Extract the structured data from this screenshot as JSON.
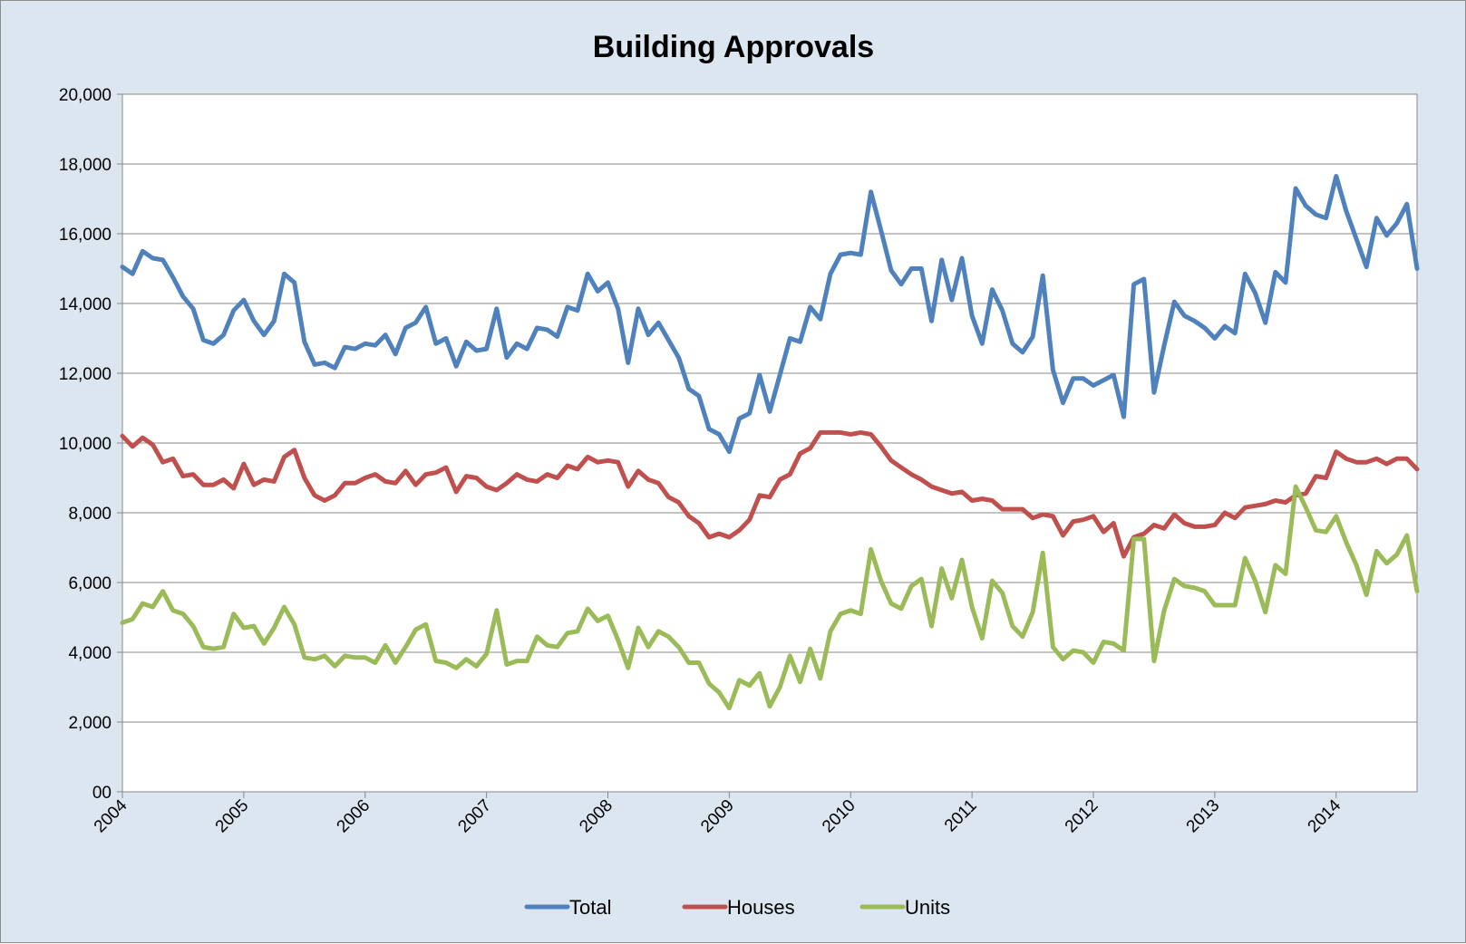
{
  "chart_data": {
    "type": "line",
    "title": "Building Approvals",
    "xlabel": "",
    "ylabel": "",
    "ylim": [
      0,
      20000
    ],
    "y_ticks": [
      0,
      2000,
      4000,
      6000,
      8000,
      10000,
      12000,
      14000,
      16000,
      18000,
      20000
    ],
    "y_tick_labels": [
      "00",
      "2,000",
      "4,000",
      "6,000",
      "8,000",
      "10,000",
      "12,000",
      "14,000",
      "16,000",
      "18,000",
      "20,000"
    ],
    "x_ticks": [
      "2004",
      "2005",
      "2006",
      "2007",
      "2008",
      "2009",
      "2010",
      "2011",
      "2012",
      "2013",
      "2014"
    ],
    "x_start": "2004-01",
    "frequency": "monthly",
    "grid": "horizontal",
    "legend_position": "bottom",
    "series": [
      {
        "name": "Total",
        "color": "#4f81bd",
        "values": [
          15050,
          14850,
          15500,
          15300,
          15250,
          14750,
          14200,
          13850,
          12950,
          12850,
          13100,
          13800,
          14100,
          13500,
          13100,
          13500,
          14850,
          14600,
          12900,
          12250,
          12300,
          12150,
          12750,
          12700,
          12850,
          12800,
          13100,
          12550,
          13300,
          13450,
          13900,
          12850,
          13000,
          12200,
          12900,
          12650,
          12700,
          13850,
          12450,
          12850,
          12700,
          13300,
          13250,
          13050,
          13900,
          13800,
          14850,
          14350,
          14600,
          13850,
          12300,
          13850,
          13100,
          13450,
          12950,
          12450,
          11550,
          11350,
          10400,
          10250,
          9750,
          10700,
          10850,
          11950,
          10900,
          11950,
          13000,
          12900,
          13900,
          13550,
          14850,
          15400,
          15450,
          15400,
          17200,
          16100,
          14950,
          14550,
          15000,
          15000,
          13500,
          15250,
          14100,
          15300,
          13650,
          12850,
          14400,
          13800,
          12850,
          12600,
          13050,
          14800,
          12100,
          11150,
          11850,
          11850,
          11650,
          11800,
          11950,
          10750,
          14550,
          14700,
          11450,
          12800,
          14050,
          13650,
          13500,
          13300,
          13000,
          13350,
          13150,
          14850,
          14300,
          13450,
          14900,
          14600,
          17300,
          16800,
          16550,
          16450,
          17650,
          16650,
          15850,
          15050,
          16450,
          15950,
          16300,
          16850,
          15000
        ]
      },
      {
        "name": "Houses",
        "color": "#c0504d",
        "values": [
          10200,
          9900,
          10150,
          9950,
          9450,
          9550,
          9050,
          9100,
          8800,
          8800,
          8950,
          8700,
          9400,
          8800,
          8950,
          8900,
          9600,
          9800,
          9000,
          8500,
          8350,
          8500,
          8850,
          8850,
          9000,
          9100,
          8900,
          8850,
          9200,
          8800,
          9100,
          9150,
          9300,
          8600,
          9050,
          9000,
          8750,
          8650,
          8850,
          9100,
          8950,
          8900,
          9100,
          9000,
          9350,
          9250,
          9600,
          9450,
          9500,
          9450,
          8750,
          9200,
          8950,
          8850,
          8450,
          8300,
          7900,
          7700,
          7300,
          7400,
          7300,
          7500,
          7800,
          8500,
          8450,
          8950,
          9100,
          9700,
          9850,
          10300,
          10300,
          10300,
          10250,
          10300,
          10250,
          9900,
          9500,
          9300,
          9100,
          8950,
          8750,
          8650,
          8550,
          8600,
          8350,
          8400,
          8350,
          8100,
          8100,
          8100,
          7850,
          7950,
          7900,
          7350,
          7750,
          7800,
          7900,
          7450,
          7700,
          6750,
          7300,
          7400,
          7650,
          7550,
          7950,
          7700,
          7600,
          7600,
          7650,
          8000,
          7850,
          8150,
          8200,
          8250,
          8350,
          8300,
          8500,
          8550,
          9050,
          9000,
          9750,
          9550,
          9450,
          9450,
          9550,
          9400,
          9550,
          9550,
          9250
        ]
      },
      {
        "name": "Units",
        "color": "#9bbb59",
        "values": [
          4850,
          4950,
          5400,
          5300,
          5750,
          5200,
          5100,
          4750,
          4150,
          4100,
          4150,
          5100,
          4700,
          4750,
          4250,
          4700,
          5300,
          4800,
          3850,
          3800,
          3900,
          3600,
          3900,
          3850,
          3850,
          3700,
          4200,
          3700,
          4150,
          4650,
          4800,
          3750,
          3700,
          3550,
          3800,
          3600,
          3950,
          5200,
          3650,
          3750,
          3750,
          4450,
          4200,
          4150,
          4550,
          4600,
          5250,
          4900,
          5050,
          4350,
          3550,
          4700,
          4150,
          4600,
          4450,
          4150,
          3700,
          3700,
          3100,
          2850,
          2400,
          3200,
          3050,
          3400,
          2450,
          3000,
          3900,
          3150,
          4100,
          3250,
          4600,
          5100,
          5200,
          5100,
          6950,
          6050,
          5400,
          5250,
          5900,
          6100,
          4750,
          6400,
          5550,
          6650,
          5300,
          4400,
          6050,
          5700,
          4750,
          4450,
          5150,
          6850,
          4150,
          3800,
          4050,
          4000,
          3700,
          4300,
          4250,
          4050,
          7250,
          7250,
          3750,
          5200,
          6100,
          5900,
          5850,
          5750,
          5350,
          5350,
          5350,
          6700,
          6050,
          5150,
          6500,
          6250,
          8750,
          8150,
          7500,
          7450,
          7900,
          7150,
          6500,
          5650,
          6900,
          6550,
          6800,
          7350,
          5750
        ]
      }
    ]
  }
}
